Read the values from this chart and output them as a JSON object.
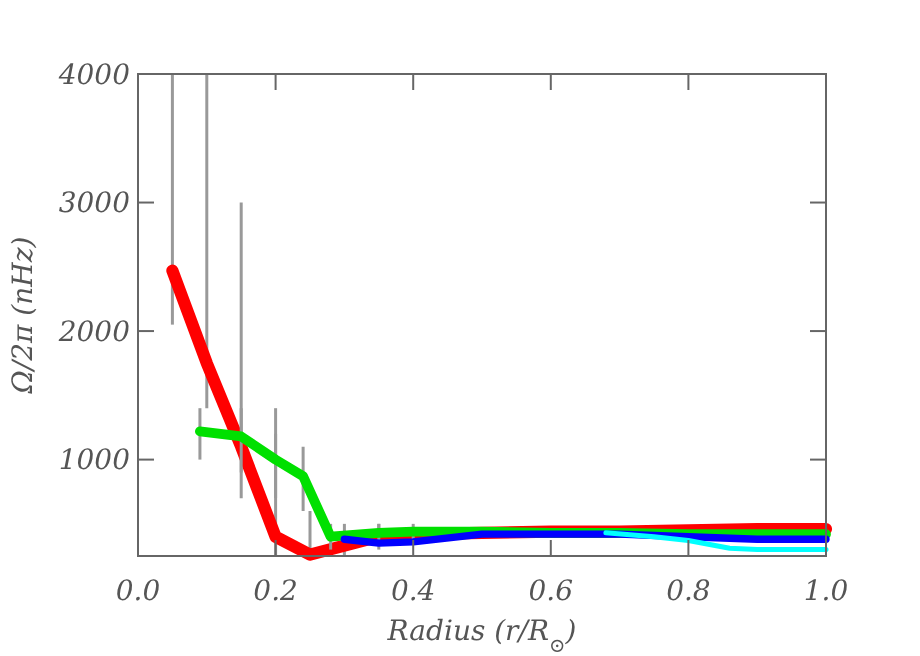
{
  "chart_data": {
    "type": "line",
    "xlabel": "Radius (r/R$_{⊙}$)",
    "ylabel": "Ω/2π (nHz)",
    "xlim": [
      0,
      1
    ],
    "ylim": [
      250,
      4000
    ],
    "xticks": [
      {
        "value": 0,
        "label": "0.0"
      },
      {
        "value": 0.2,
        "label": "0.2"
      },
      {
        "value": 0.4,
        "label": "0.4"
      },
      {
        "value": 0.6,
        "label": "0.6"
      },
      {
        "value": 0.8,
        "label": "0.8"
      },
      {
        "value": 1,
        "label": "1.0"
      }
    ],
    "yticks": [
      1000,
      2000,
      3000,
      4000
    ],
    "grid": false,
    "marker": "none",
    "line_style": "solid",
    "series": [
      {
        "color": "#ff0000",
        "x": [
          0.05,
          0.1,
          0.15,
          0.2,
          0.25,
          0.3,
          0.35,
          0.4,
          0.5,
          0.6,
          0.7,
          0.8,
          0.9,
          1.0
        ],
        "values": [
          2470,
          1750,
          1100,
          400,
          260,
          330,
          400,
          420,
          430,
          440,
          440,
          450,
          460,
          460
        ],
        "errors": [
          [
            2050,
            4000
          ],
          [
            1400,
            4000
          ],
          [
            700,
            3000
          ],
          [
            250,
            1400
          ],
          [
            250,
            600
          ],
          [
            250,
            500
          ],
          [
            300,
            500
          ],
          null,
          null,
          null,
          null,
          null,
          null,
          null
        ]
      },
      {
        "color": "#00e000",
        "x": [
          0.09,
          0.15,
          0.2,
          0.24,
          0.28,
          0.35,
          0.4,
          0.5,
          0.6,
          0.7,
          0.8,
          0.9,
          1.0
        ],
        "values": [
          1220,
          1180,
          1000,
          870,
          400,
          430,
          440,
          440,
          430,
          430,
          420,
          420,
          420
        ],
        "errors": [
          [
            1000,
            1400
          ],
          [
            900,
            1400
          ],
          [
            700,
            1200
          ],
          [
            600,
            1100
          ],
          [
            300,
            500
          ],
          [
            350,
            500
          ],
          [
            380,
            500
          ],
          null,
          null,
          null,
          null,
          null,
          null
        ]
      },
      {
        "color": "#0000ff",
        "x": [
          0.3,
          0.35,
          0.4,
          0.5,
          0.6,
          0.7,
          0.8,
          0.9,
          1.0
        ],
        "values": [
          380,
          350,
          360,
          420,
          420,
          420,
          400,
          380,
          380
        ]
      },
      {
        "color": "#00ffff",
        "x": [
          0.68,
          0.75,
          0.8,
          0.86,
          0.9,
          1.0
        ],
        "values": [
          430,
          400,
          370,
          310,
          300,
          300
        ]
      }
    ]
  }
}
